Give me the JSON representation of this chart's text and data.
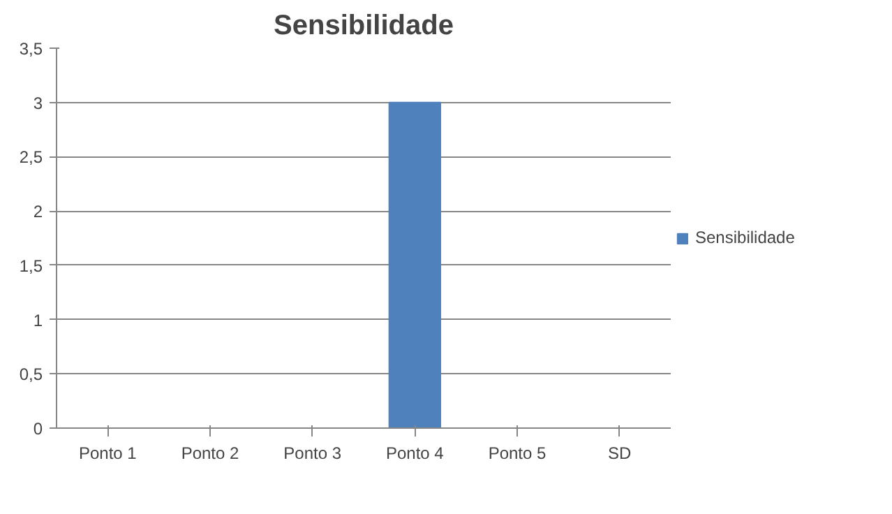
{
  "chart_data": {
    "type": "bar",
    "title": "Sensibilidade",
    "categories": [
      "Ponto 1",
      "Ponto 2",
      "Ponto 3",
      "Ponto 4",
      "Ponto 5",
      "SD"
    ],
    "series": [
      {
        "name": "Sensibilidade",
        "color": "#4f81bd",
        "values": [
          0,
          0,
          0,
          3,
          0,
          0
        ]
      }
    ],
    "ylim": [
      0,
      3.5
    ],
    "yticks": [
      0,
      {
        "value": 0.5,
        "label": "0,5"
      },
      1,
      {
        "value": 1.5,
        "label": "1,5"
      },
      2,
      {
        "value": 2.5,
        "label": "2,5"
      },
      3,
      {
        "value": 3.5,
        "label": "3,5"
      }
    ],
    "grid": "y",
    "legend": "right"
  }
}
